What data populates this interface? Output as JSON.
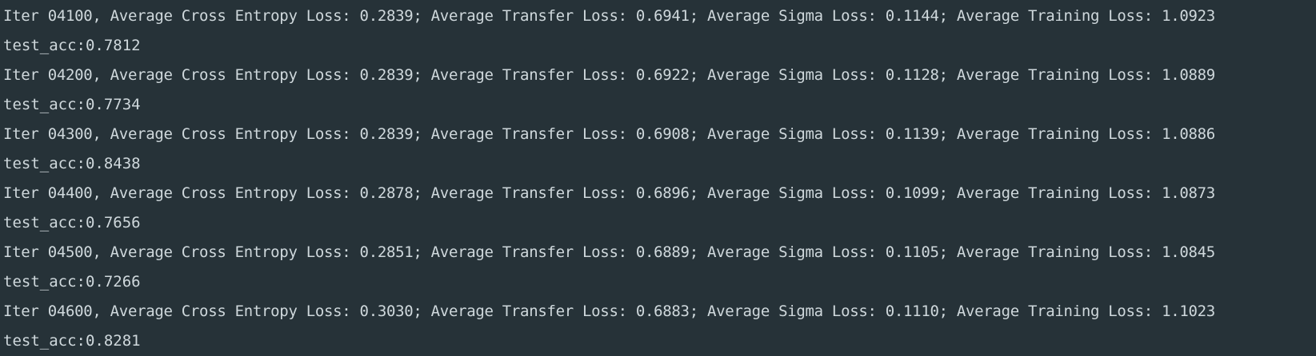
{
  "console": {
    "lines": [
      "Iter 04100, Average Cross Entropy Loss: 0.2839; Average Transfer Loss: 0.6941; Average Sigma Loss: 0.1144; Average Training Loss: 1.0923",
      "test_acc:0.7812",
      "Iter 04200, Average Cross Entropy Loss: 0.2839; Average Transfer Loss: 0.6922; Average Sigma Loss: 0.1128; Average Training Loss: 1.0889",
      "test_acc:0.7734",
      "Iter 04300, Average Cross Entropy Loss: 0.2839; Average Transfer Loss: 0.6908; Average Sigma Loss: 0.1139; Average Training Loss: 1.0886",
      "test_acc:0.8438",
      "Iter 04400, Average Cross Entropy Loss: 0.2878; Average Transfer Loss: 0.6896; Average Sigma Loss: 0.1099; Average Training Loss: 1.0873",
      "test_acc:0.7656",
      "Iter 04500, Average Cross Entropy Loss: 0.2851; Average Transfer Loss: 0.6889; Average Sigma Loss: 0.1105; Average Training Loss: 1.0845",
      "test_acc:0.7266",
      "Iter 04600, Average Cross Entropy Loss: 0.3030; Average Transfer Loss: 0.6883; Average Sigma Loss: 0.1110; Average Training Loss: 1.1023",
      "test_acc:0.8281"
    ]
  }
}
